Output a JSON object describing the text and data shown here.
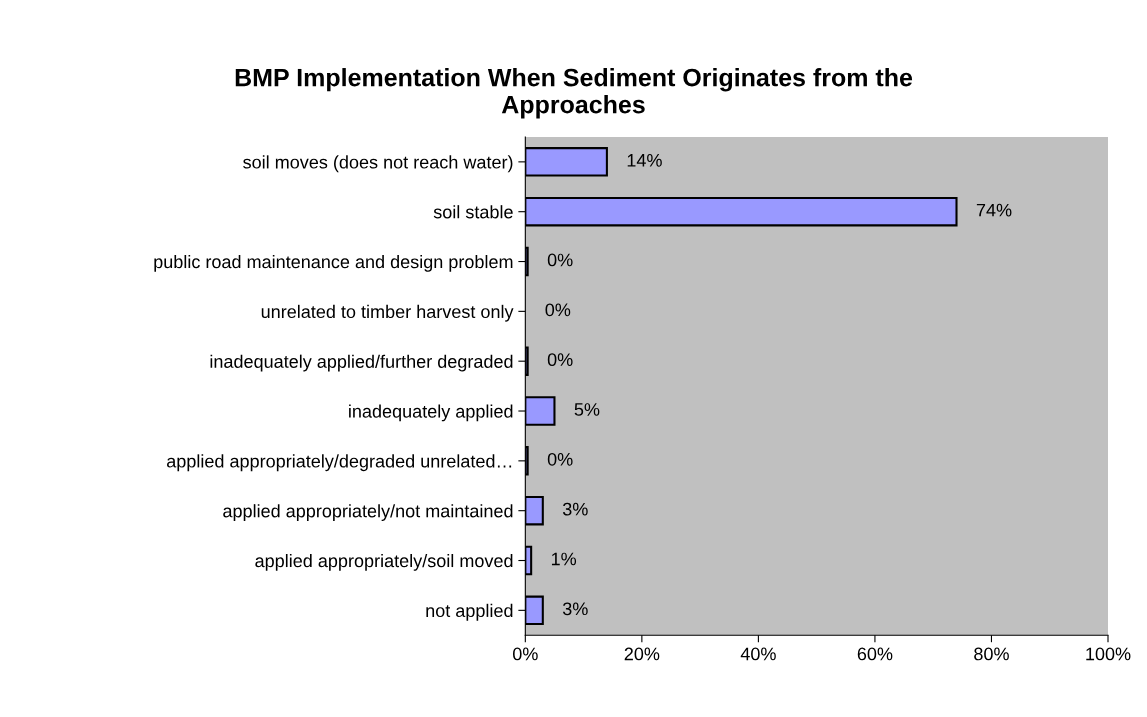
{
  "chart_data": {
    "type": "bar",
    "orientation": "horizontal",
    "title": "BMP Implementation When Sediment Originates from the\nApproaches",
    "categories": [
      "soil moves (does not reach water)",
      "soil stable",
      "public road maintenance and design problem",
      "unrelated to timber harvest only",
      "inadequately applied/further degraded",
      "inadequately applied",
      "applied appropriately/degraded unrelated…",
      "applied appropriately/not maintained",
      "applied appropriately/soil moved",
      "not applied"
    ],
    "values": [
      14,
      74,
      0.4,
      0,
      0.4,
      5,
      0.4,
      3,
      1,
      3
    ],
    "value_labels": [
      "14%",
      "74%",
      "0%",
      "0%",
      "0%",
      "5%",
      "0%",
      "3%",
      "1%",
      "3%"
    ],
    "color": "#9999ff",
    "xlim": [
      0,
      100
    ],
    "xticks": [
      {
        "value": 0,
        "label": "0%"
      },
      {
        "value": 20,
        "label": "20%"
      },
      {
        "value": 40,
        "label": "40%"
      },
      {
        "value": 60,
        "label": "60%"
      },
      {
        "value": 80,
        "label": "80%"
      },
      {
        "value": 100,
        "label": "100%"
      }
    ],
    "grid": false,
    "legend": false
  }
}
